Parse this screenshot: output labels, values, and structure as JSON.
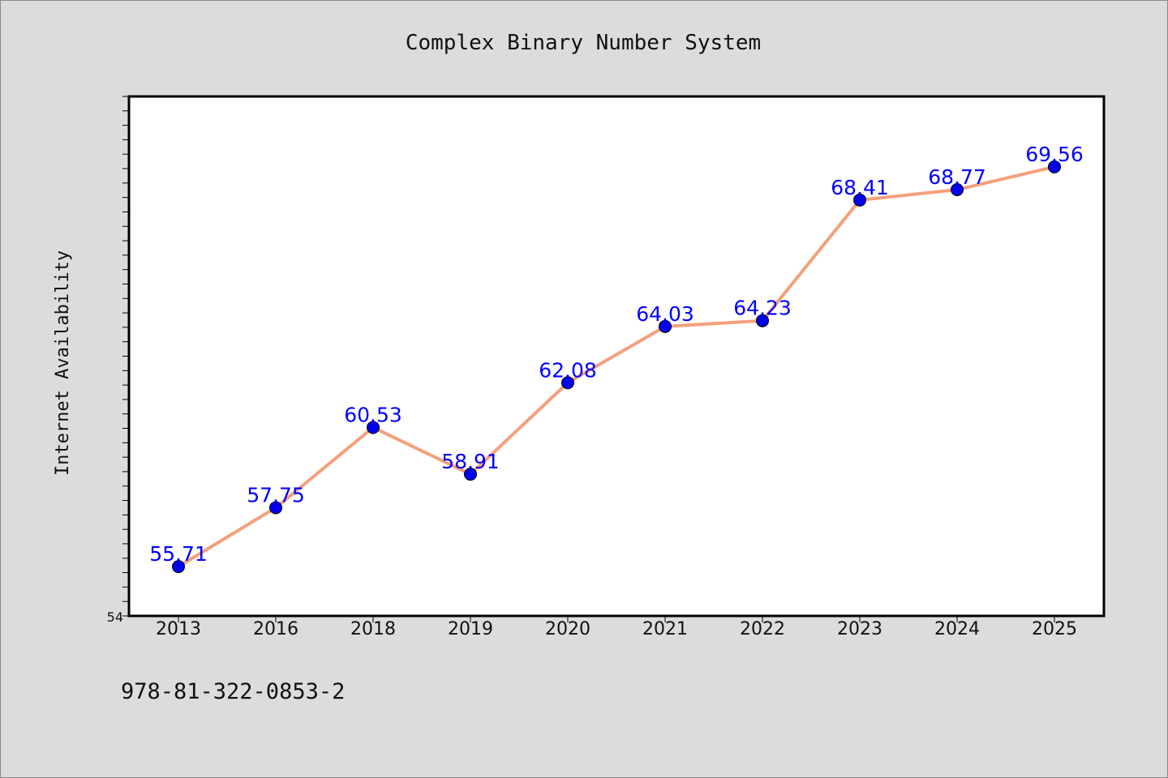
{
  "chart_data": {
    "type": "line",
    "title": "Complex Binary Number System",
    "ylabel": "Internet Availability",
    "xlabel": "",
    "categories": [
      "2013",
      "2016",
      "2018",
      "2019",
      "2020",
      "2021",
      "2022",
      "2023",
      "2024",
      "2025"
    ],
    "series": [
      {
        "values": [
          55.71,
          57.75,
          60.53,
          58.91,
          62.08,
          64.03,
          64.23,
          68.41,
          68.77,
          69.56
        ],
        "labels": [
          "55.71",
          "57.75",
          "60.53",
          "58.91",
          "62.08",
          "64.03",
          "64.23",
          "68.41",
          "68.77",
          "69.56"
        ],
        "line_color": "#f4a07c",
        "marker_color": "#0000ee",
        "label_color": "#0000ff"
      }
    ],
    "ylim": [
      54,
      72
    ],
    "y_tick_label": "54",
    "grid": false,
    "legend": "none"
  },
  "footer": {
    "code": "978-81-322-0853-2"
  },
  "colors": {
    "background": "#dcdcdc",
    "plot_background": "#ffffff"
  }
}
